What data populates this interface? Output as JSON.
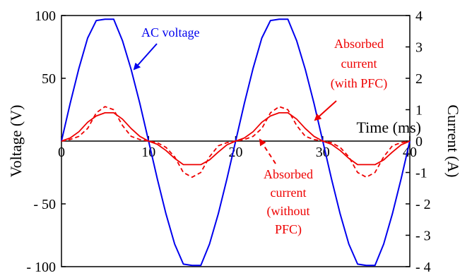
{
  "chart_data": {
    "type": "line",
    "title": "",
    "xlabel": "Time (ms)",
    "ylabel_left": "Voltage (V)",
    "ylabel_right": "Current (A)",
    "xlim": [
      0,
      40
    ],
    "ylim_left": [
      -100,
      100
    ],
    "ylim_right": [
      -4,
      4
    ],
    "x_ticks": [
      "0",
      "10",
      "20",
      "30",
      "40"
    ],
    "y_left_ticks": [
      "100",
      "50",
      "- 50",
      "- 100"
    ],
    "y_right_ticks": [
      "4",
      "3",
      "2",
      "1",
      "0",
      "-1",
      "- 2",
      "- 3",
      "- 4"
    ],
    "grid": false,
    "legend": "none",
    "series": [
      {
        "name": "AC voltage",
        "axis": "left",
        "color": "#0000ee",
        "style": "solid",
        "x": [
          0,
          1,
          2,
          3,
          4,
          5,
          6,
          7,
          8,
          9,
          10,
          11,
          12,
          13,
          14,
          15,
          16,
          17,
          18,
          19,
          20,
          21,
          22,
          23,
          24,
          25,
          26,
          27,
          28,
          29,
          30,
          31,
          32,
          33,
          34,
          35,
          36,
          37,
          38,
          39,
          40
        ],
        "values": [
          0,
          30,
          58,
          82,
          96,
          97,
          97,
          80,
          57,
          30,
          0,
          -30,
          -58,
          -82,
          -98,
          -99,
          -99,
          -82,
          -58,
          -30,
          0,
          30,
          58,
          82,
          96,
          97,
          97,
          80,
          57,
          30,
          0,
          -30,
          -58,
          -82,
          -98,
          -99,
          -99,
          -82,
          -58,
          -30,
          0
        ]
      },
      {
        "name": "with PFC",
        "axis": "right",
        "color": "#ee0000",
        "style": "solid",
        "x": [
          0,
          1,
          2,
          3,
          4,
          5,
          6,
          7,
          8,
          9,
          10,
          11,
          12,
          13,
          14,
          15,
          16,
          17,
          18,
          19,
          20,
          21,
          22,
          23,
          24,
          25,
          26,
          27,
          28,
          29,
          30,
          31,
          32,
          33,
          34,
          35,
          36,
          37,
          38,
          39,
          40
        ],
        "values": [
          0,
          0.1,
          0.3,
          0.6,
          0.8,
          0.9,
          0.9,
          0.7,
          0.4,
          0.15,
          0,
          -0.1,
          -0.3,
          -0.55,
          -0.75,
          -0.75,
          -0.75,
          -0.6,
          -0.35,
          -0.12,
          0,
          0.1,
          0.3,
          0.6,
          0.8,
          0.9,
          0.9,
          0.7,
          0.4,
          0.15,
          0,
          -0.1,
          -0.3,
          -0.55,
          -0.75,
          -0.75,
          -0.75,
          -0.6,
          -0.35,
          -0.12,
          0
        ]
      },
      {
        "name": "without PFC",
        "axis": "right",
        "color": "#ee0000",
        "style": "dashed",
        "x": [
          0,
          1,
          2,
          3,
          4,
          5,
          6,
          7,
          8,
          9,
          10,
          11,
          12,
          13,
          14,
          15,
          16,
          17,
          18,
          19,
          20,
          21,
          22,
          23,
          24,
          25,
          26,
          27,
          28,
          29,
          30,
          31,
          32,
          33,
          34,
          35,
          36,
          37,
          38,
          39,
          40
        ],
        "values": [
          0,
          0.05,
          0.15,
          0.4,
          0.9,
          1.1,
          1.0,
          0.5,
          0.15,
          0.05,
          0,
          -0.05,
          -0.2,
          -0.5,
          -1.0,
          -1.15,
          -1.0,
          -0.5,
          -0.15,
          -0.05,
          0,
          0.05,
          0.15,
          0.4,
          0.9,
          1.1,
          1.0,
          0.5,
          0.15,
          0.05,
          0,
          -0.05,
          -0.2,
          -0.5,
          -1.0,
          -1.15,
          -1.0,
          -0.5,
          -0.15,
          -0.05,
          0
        ]
      }
    ],
    "annotations": {
      "ac_voltage": "AC voltage",
      "with_pfc": [
        "Absorbed",
        "current",
        "(with PFC)"
      ],
      "without_pfc": [
        "Absorbed",
        "current",
        "(without",
        "PFC)"
      ]
    }
  }
}
